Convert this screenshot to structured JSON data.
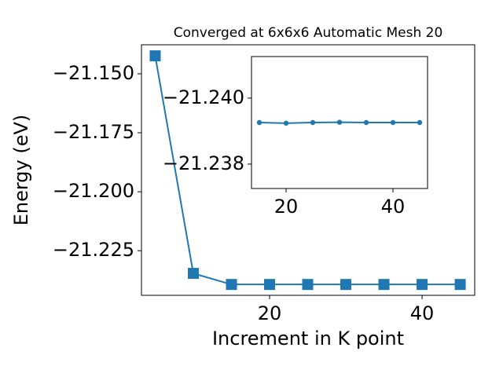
{
  "chart_data": [
    {
      "type": "line",
      "title": "Converged at 6x6x6 Automatic Mesh 20",
      "xlabel": "Increment in K point",
      "ylabel": "Energy (eV)",
      "x": [
        5,
        10,
        15,
        20,
        25,
        30,
        35,
        40,
        45
      ],
      "series": [
        {
          "color": "#1f77b4",
          "marker": "square",
          "values": [
            -21.1424,
            -21.2346,
            -21.2393,
            -21.2393,
            -21.2393,
            -21.2393,
            -21.2393,
            -21.2393,
            -21.2393
          ]
        }
      ],
      "xlim": [
        3.2,
        46.9
      ],
      "ylim": [
        -21.2439,
        -21.1377
      ],
      "xticks": [
        20,
        40
      ],
      "yticks": [
        {
          "value": -21.15,
          "label": "−21.150"
        },
        {
          "value": -21.175,
          "label": "−21.175"
        },
        {
          "value": -21.2,
          "label": "−21.200"
        },
        {
          "value": -21.225,
          "label": "−21.225"
        }
      ]
    },
    {
      "type": "line",
      "x": [
        15,
        20,
        25,
        30,
        35,
        40,
        45
      ],
      "series": [
        {
          "color": "#1f77b4",
          "marker": "circle",
          "values": [
            -21.23926,
            -21.23924,
            -21.23926,
            -21.23927,
            -21.23926,
            -21.23926,
            -21.23926
          ]
        }
      ],
      "xlim": [
        13.53,
        46.47
      ],
      "ylim": [
        -21.23726,
        -21.24126
      ],
      "xticks": [
        20,
        40
      ],
      "yticks": [
        {
          "value": -21.24,
          "label": "−21.240"
        },
        {
          "value": -21.238,
          "label": "−21.238"
        }
      ]
    }
  ]
}
